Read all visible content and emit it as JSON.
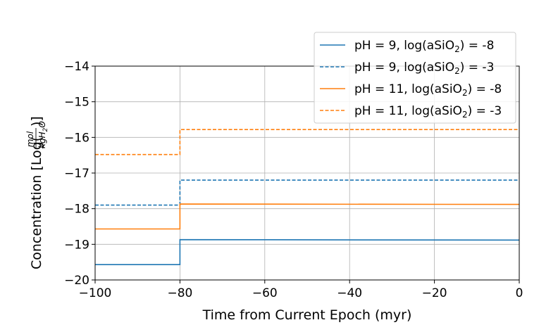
{
  "chart_data": {
    "type": "line",
    "xlabel": "Time from Current Epoch (myr)",
    "ylabel": "Concentration [Log(mol / kgH2O)]",
    "ylabel_parts": {
      "prefix": "Concentration [Log(",
      "numerator": "mol",
      "denominator": "kgH",
      "denominator_sub": "2",
      "denominator_tail": "O",
      "suffix": ")]"
    },
    "xlim": [
      -100,
      0
    ],
    "ylim": [
      -20,
      -14
    ],
    "xticks": [
      -100,
      -80,
      -60,
      -40,
      -20,
      0
    ],
    "yticks": [
      -20,
      -19,
      -18,
      -17,
      -16,
      -15,
      -14
    ],
    "xtick_labels": [
      "−100",
      "−80",
      "−60",
      "−40",
      "−20",
      "0"
    ],
    "ytick_labels": [
      "−20",
      "−19",
      "−18",
      "−17",
      "−16",
      "−15",
      "−14"
    ],
    "grid": true,
    "legend_position": "top-right",
    "series": [
      {
        "name": "pH = 9, log(aSiO2) = -8",
        "label_pre": "pH = 9, log(aSiO",
        "label_sub": "2",
        "label_post": ") = -8",
        "color": "#1f77b4",
        "style": "solid",
        "points": [
          [
            -100,
            -19.57
          ],
          [
            -80,
            -19.57
          ],
          [
            -80,
            -18.87
          ],
          [
            0,
            -18.88
          ]
        ]
      },
      {
        "name": "pH = 9, log(aSiO2) = -3",
        "label_pre": "pH = 9, log(aSiO",
        "label_sub": "2",
        "label_post": ") = -3",
        "color": "#1f77b4",
        "style": "dashed",
        "points": [
          [
            -100,
            -17.9
          ],
          [
            -80,
            -17.9
          ],
          [
            -80,
            -17.2
          ],
          [
            0,
            -17.2
          ]
        ]
      },
      {
        "name": "pH = 11, log(aSiO2) = -8",
        "label_pre": "pH = 11, log(aSiO",
        "label_sub": "2",
        "label_post": ") = -8",
        "color": "#ff7f0e",
        "style": "solid",
        "points": [
          [
            -100,
            -18.57
          ],
          [
            -80,
            -18.57
          ],
          [
            -80,
            -17.87
          ],
          [
            0,
            -17.88
          ]
        ]
      },
      {
        "name": "pH = 11, log(aSiO2) = -3",
        "label_pre": "pH = 11, log(aSiO",
        "label_sub": "2",
        "label_post": ") = -3",
        "color": "#ff7f0e",
        "style": "dashed",
        "points": [
          [
            -100,
            -16.48
          ],
          [
            -80,
            -16.48
          ],
          [
            -80,
            -15.78
          ],
          [
            0,
            -15.78
          ]
        ]
      }
    ]
  }
}
